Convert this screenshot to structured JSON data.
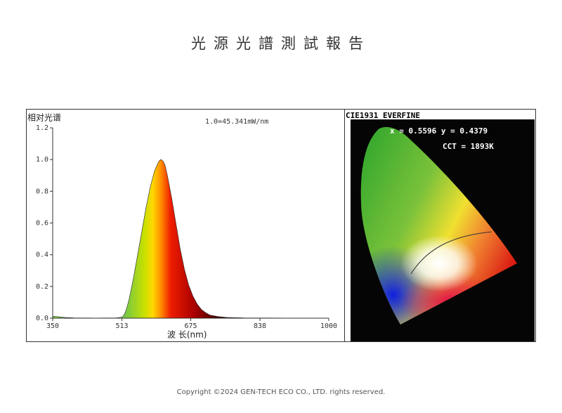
{
  "title": "光源光譜測試報告",
  "chart_data": {
    "type": "area",
    "ylabel": "相对光谱",
    "annotation": "1.0=45.341mW/nm",
    "xlabel": "波 长(nm)",
    "x": [
      350,
      360,
      370,
      380,
      400,
      450,
      500,
      510,
      515,
      520,
      525,
      530,
      540,
      550,
      560,
      570,
      580,
      590,
      600,
      605,
      610,
      615,
      620,
      630,
      640,
      650,
      660,
      670,
      680,
      690,
      700,
      710,
      720,
      740,
      760,
      800,
      900,
      1000
    ],
    "values": [
      0.012,
      0.01,
      0.007,
      0.004,
      0.002,
      0.001,
      0.002,
      0.005,
      0.01,
      0.03,
      0.07,
      0.12,
      0.25,
      0.4,
      0.55,
      0.7,
      0.83,
      0.93,
      0.99,
      1.0,
      0.99,
      0.96,
      0.9,
      0.76,
      0.6,
      0.44,
      0.31,
      0.21,
      0.14,
      0.09,
      0.055,
      0.035,
      0.02,
      0.01,
      0.005,
      0.002,
      0.001,
      0
    ],
    "xlim": [
      350,
      1000
    ],
    "xticks": [
      350,
      513,
      675,
      838,
      1000
    ],
    "ylim": [
      0,
      1.2
    ],
    "yticks": [
      {
        "value": 0,
        "label": "0.0"
      },
      0.2,
      0.4,
      0.6,
      0.8,
      {
        "value": 1,
        "label": "1.0"
      },
      1.2
    ]
  },
  "cie": {
    "title": "CIE1931 EVERFINE",
    "coords": "x = 0.5596 y = 0.4379",
    "cct": "CCT = 1893K"
  },
  "footer": "Copyright ©2024 GEN-TECH ECO CO., LTD. rights reserved."
}
